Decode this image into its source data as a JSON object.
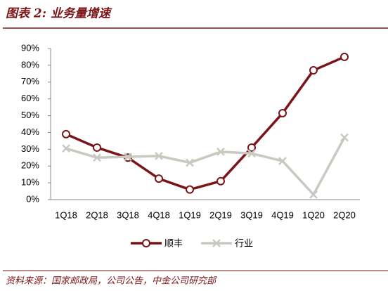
{
  "chart_data": {
    "type": "line",
    "title": "图表 2: 业务量增速",
    "source": "资料来源：国家邮政局，公司公告，中金公司研究部",
    "categories": [
      "1Q18",
      "2Q18",
      "3Q18",
      "4Q18",
      "1Q19",
      "2Q19",
      "3Q19",
      "4Q19",
      "1Q20",
      "2Q20"
    ],
    "series": [
      {
        "name": "顺丰",
        "color": "#7b1416",
        "marker": "circle",
        "values": [
          39,
          31,
          25,
          12.5,
          6,
          11,
          31,
          51.5,
          77,
          85
        ]
      },
      {
        "name": "行业",
        "color": "#c9c9c2",
        "marker": "x",
        "values": [
          30.5,
          25,
          25.5,
          26,
          22,
          28.5,
          27.5,
          23,
          3,
          37
        ]
      }
    ],
    "ylim": [
      0,
      90
    ],
    "yticks": [
      {
        "value": 0,
        "label": "0%"
      },
      {
        "value": 10,
        "label": "10%"
      },
      {
        "value": 20,
        "label": "20%"
      },
      {
        "value": 30,
        "label": "30%"
      },
      {
        "value": 40,
        "label": "40%"
      },
      {
        "value": 50,
        "label": "50%"
      },
      {
        "value": 60,
        "label": "60%"
      },
      {
        "value": 70,
        "label": "70%"
      },
      {
        "value": 80,
        "label": "80%"
      },
      {
        "value": 90,
        "label": "90%"
      }
    ],
    "grid": false,
    "legend": "bottom"
  }
}
